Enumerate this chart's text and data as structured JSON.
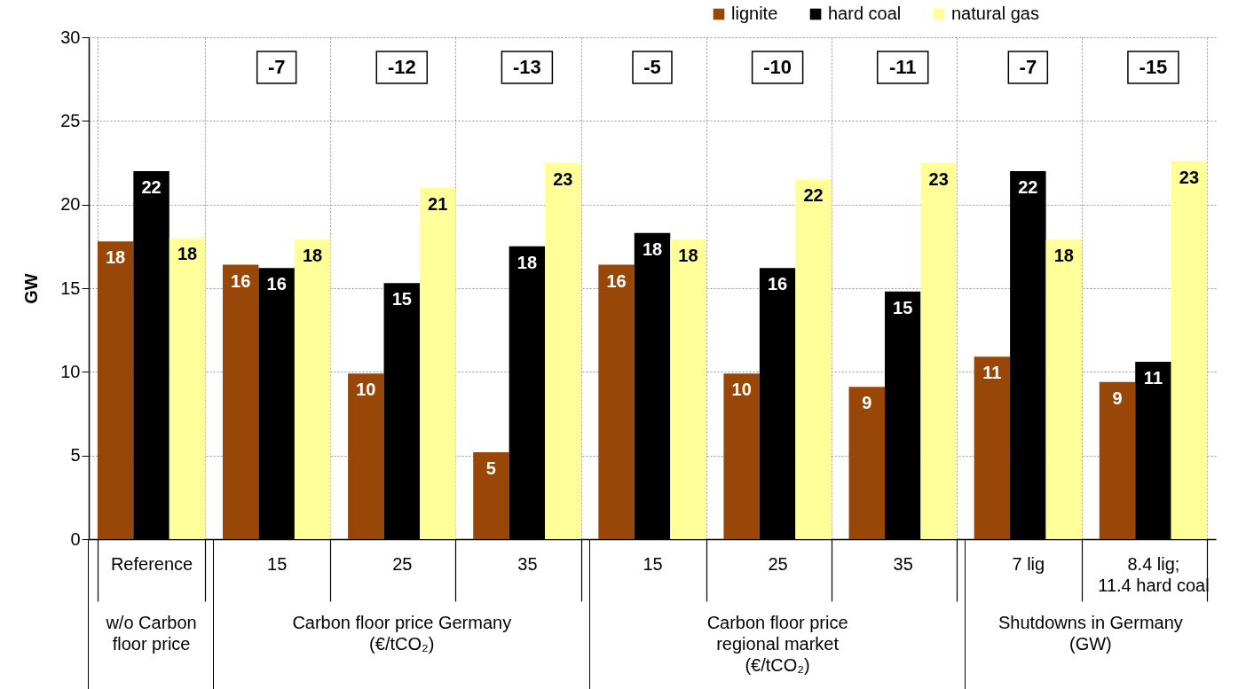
{
  "chart_data": {
    "type": "bar",
    "ylabel": "GW",
    "categories": [
      "Reference",
      "15",
      "25",
      "35",
      "15",
      "25",
      "35",
      "7 lig",
      "8.4 lig; 11.4 hard coal"
    ],
    "series": [
      {
        "name": "lignite",
        "color": "#994709",
        "values": [
          17.8,
          16.4,
          9.9,
          5.2,
          16.4,
          9.9,
          9.1,
          10.9,
          9.4
        ],
        "value_labels": [
          "18",
          "16",
          "10",
          "5",
          "16",
          "10",
          "9",
          "11",
          "9"
        ]
      },
      {
        "name": "hard coal",
        "color": "#000000",
        "values": [
          22.0,
          16.2,
          15.3,
          17.5,
          18.3,
          16.2,
          14.8,
          22.0,
          10.6
        ],
        "value_labels": [
          "22",
          "16",
          "15",
          "18",
          "18",
          "16",
          "15",
          "22",
          "11"
        ]
      },
      {
        "name": "natural gas",
        "color": "#ffff99",
        "values": [
          18.0,
          17.9,
          21.0,
          22.5,
          17.9,
          21.5,
          22.5,
          17.9,
          22.6
        ],
        "value_labels": [
          "18",
          "18",
          "21",
          "23",
          "18",
          "22",
          "23",
          "18",
          "23"
        ]
      }
    ],
    "ylim": [
      0,
      30
    ],
    "yticks": [
      0,
      5,
      10,
      15,
      20,
      25,
      30
    ],
    "grid": true,
    "legend": "top right",
    "annotations": [
      "-7",
      "-12",
      "-13",
      "-5",
      "-10",
      "-11",
      "-7",
      "-15",
      "w/o Carbon floor price",
      "Carbon floor price Germany (€/tCO₂)",
      "Carbon floor price regional market (€/tCO₂)",
      "Shutdowns in Germany (GW)"
    ]
  }
}
